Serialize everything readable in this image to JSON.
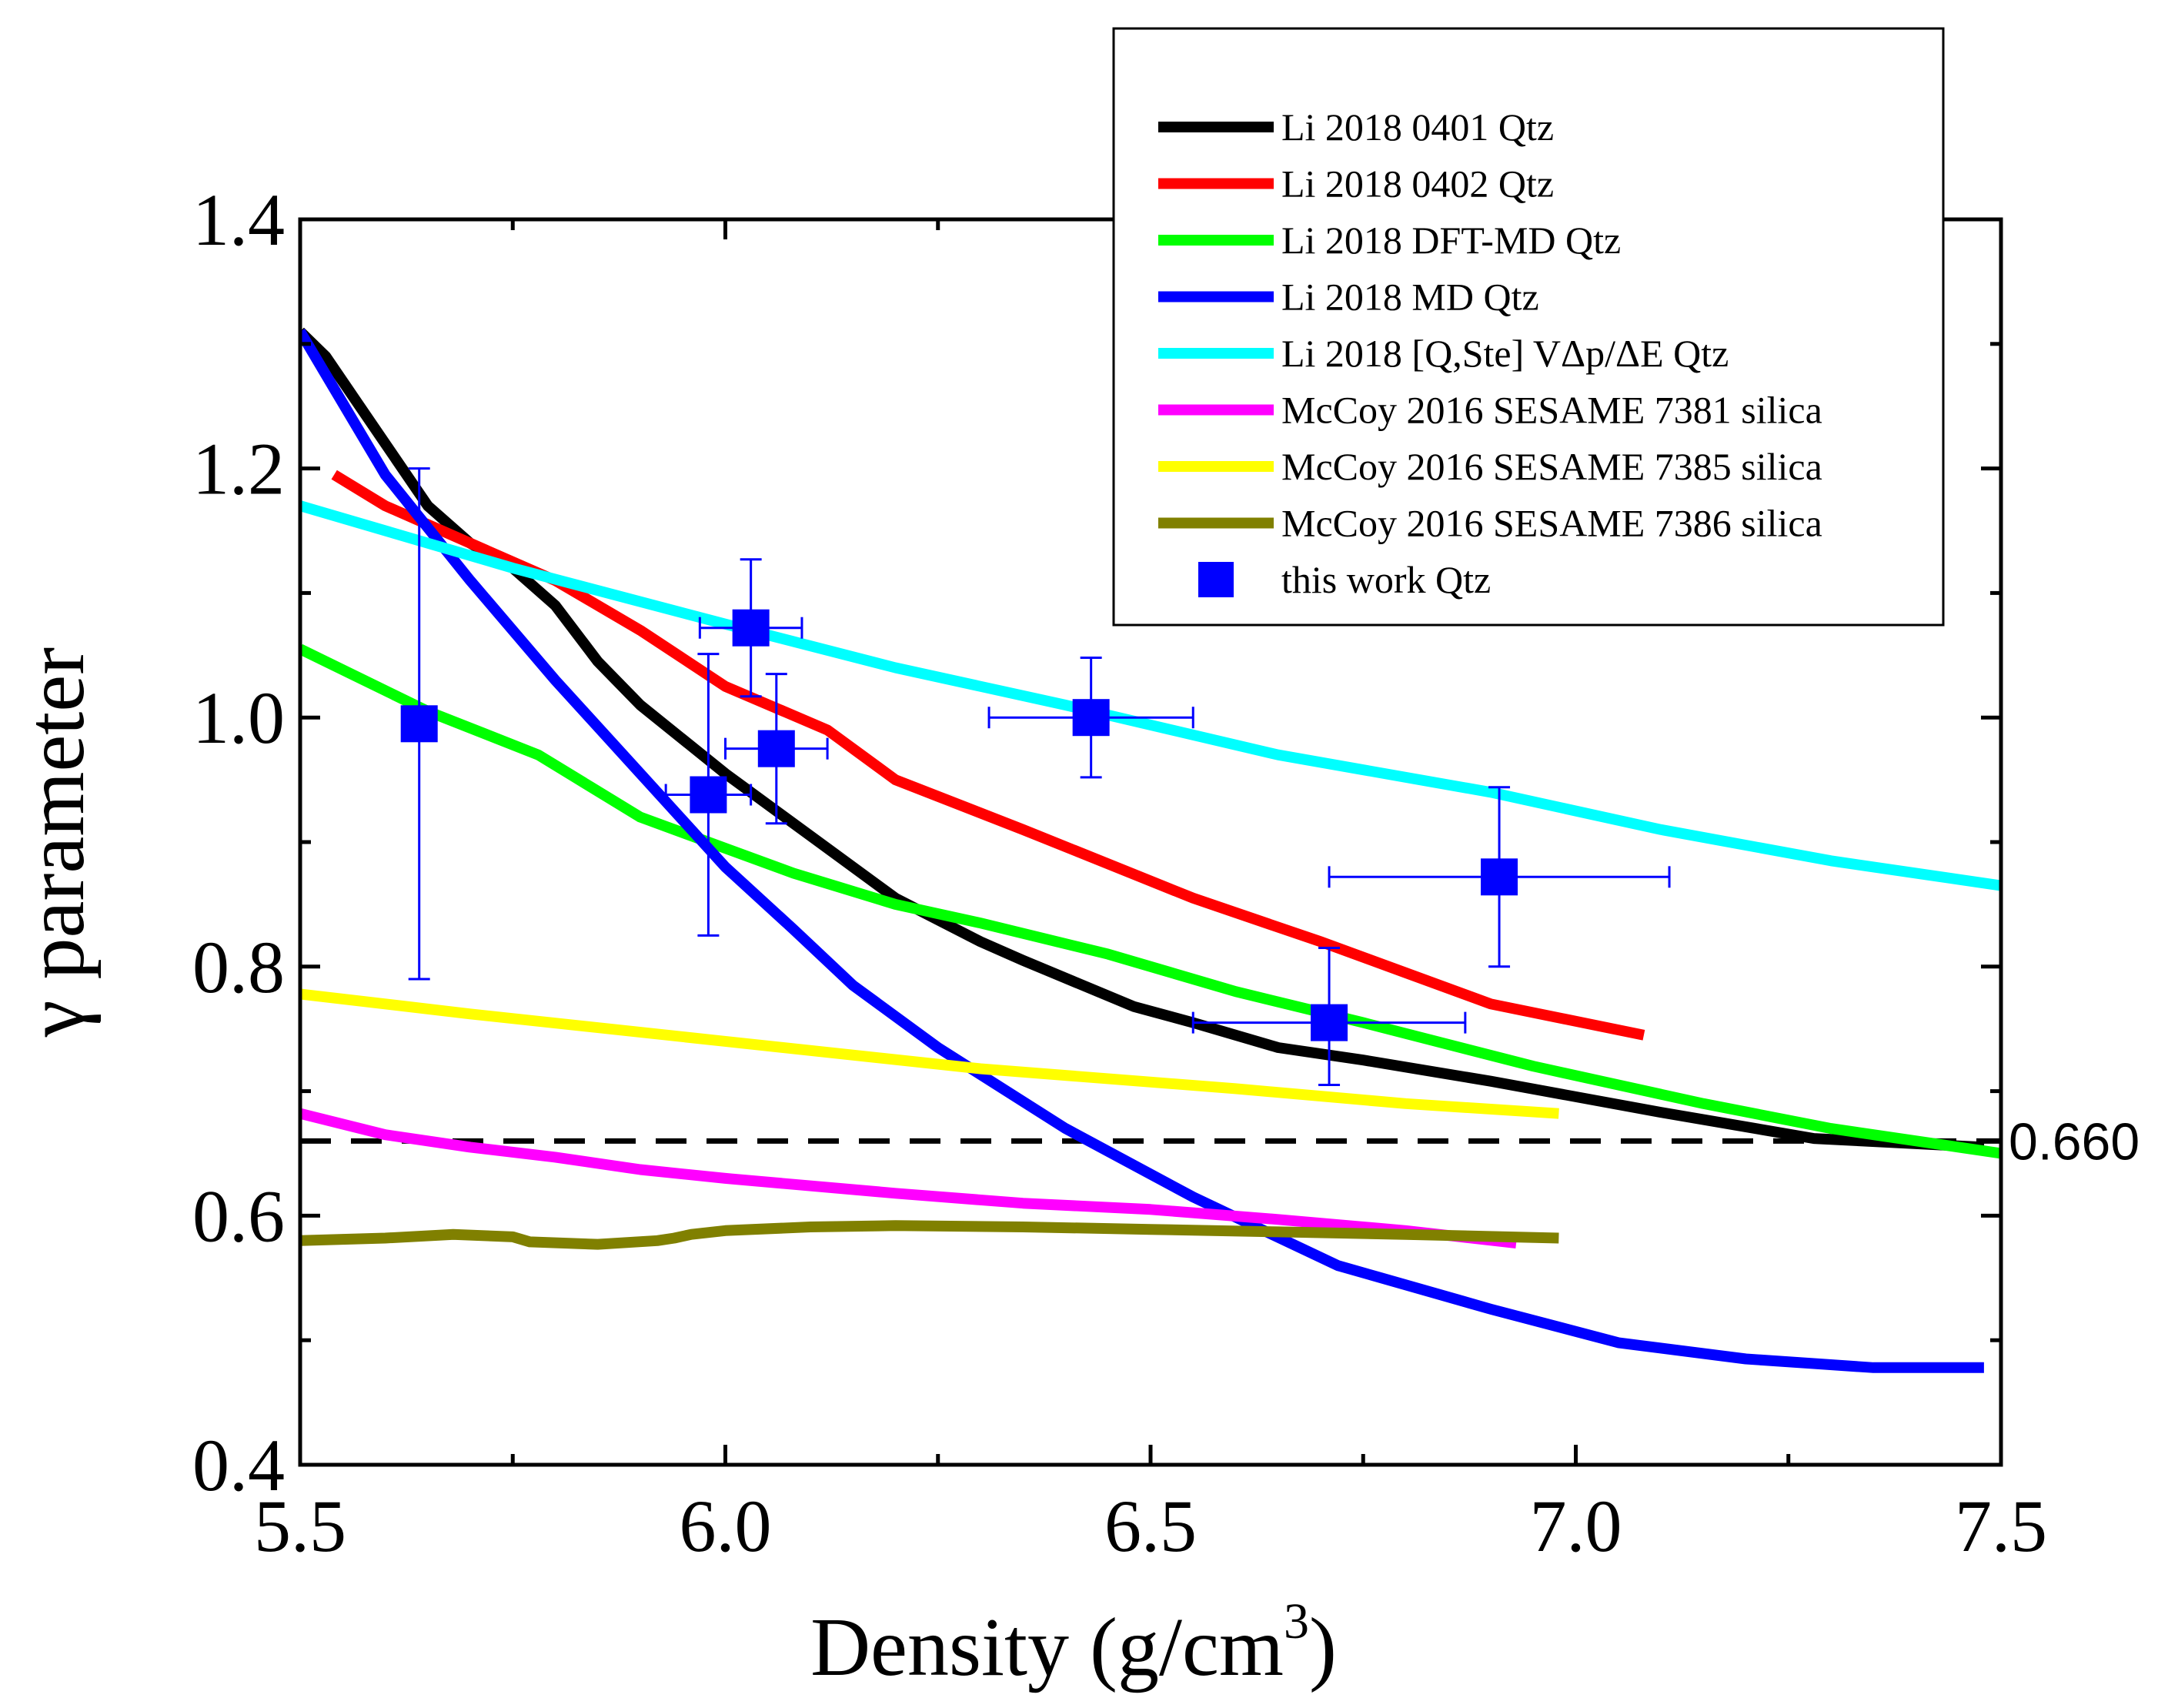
{
  "chart_data": {
    "type": "line",
    "title": "",
    "xlabel": "Density (g/cm",
    "xlabel_sup": "3",
    "xlabel_close": ")",
    "ylabel": "γ parameter",
    "xlim": [
      5.5,
      7.5
    ],
    "ylim": [
      0.4,
      1.4
    ],
    "xticks": [
      5.5,
      6.0,
      6.5,
      7.0,
      7.5
    ],
    "xtick_labels": [
      "5.5",
      "6.0",
      "6.5",
      "7.0",
      "7.5"
    ],
    "yticks": [
      0.4,
      0.6,
      0.8,
      1.0,
      1.2,
      1.4
    ],
    "ytick_labels": [
      "0.4",
      "0.6",
      "0.8",
      "1.0",
      "1.2",
      "1.4"
    ],
    "legend_position": "top-right",
    "reference_line": {
      "y": 0.66,
      "label": "0.660",
      "color": "#000000",
      "style": "dashed"
    },
    "series": [
      {
        "name": "Li 2018 0401 Qtz",
        "color": "#000000",
        "x": [
          5.5,
          5.53,
          5.56,
          5.6,
          5.65,
          5.7,
          5.75,
          5.8,
          5.85,
          5.9,
          6.0,
          6.1,
          6.2,
          6.3,
          6.35,
          6.48,
          6.55,
          6.65,
          6.75,
          6.9,
          7.1,
          7.28,
          7.48
        ],
        "y": [
          1.31,
          1.29,
          1.26,
          1.22,
          1.17,
          1.14,
          1.12,
          1.09,
          1.045,
          1.01,
          0.955,
          0.905,
          0.855,
          0.82,
          0.805,
          0.768,
          0.755,
          0.735,
          0.725,
          0.708,
          0.683,
          0.662,
          0.655
        ]
      },
      {
        "name": "Li 2018 0402 Qtz",
        "color": "#ff0000",
        "x": [
          5.54,
          5.6,
          5.7,
          5.8,
          5.9,
          6.0,
          6.12,
          6.2,
          6.35,
          6.55,
          6.7,
          6.9,
          7.08
        ],
        "y": [
          1.195,
          1.17,
          1.14,
          1.11,
          1.07,
          1.025,
          0.99,
          0.95,
          0.91,
          0.855,
          0.82,
          0.77,
          0.745
        ]
      },
      {
        "name": "Li 2018 DFT-MD Qtz",
        "color": "#00ff00",
        "x": [
          5.5,
          5.65,
          5.78,
          5.9,
          6.0,
          6.08,
          6.2,
          6.3,
          6.45,
          6.6,
          6.75,
          6.95,
          7.15,
          7.3,
          7.5
        ],
        "y": [
          1.055,
          1.005,
          0.97,
          0.92,
          0.895,
          0.875,
          0.85,
          0.835,
          0.81,
          0.78,
          0.755,
          0.72,
          0.69,
          0.67,
          0.65
        ]
      },
      {
        "name": "Li 2018 MD Qtz",
        "color": "#0000ff",
        "x": [
          5.5,
          5.6,
          5.7,
          5.8,
          5.9,
          6.0,
          6.08,
          6.15,
          6.25,
          6.4,
          6.55,
          6.72,
          6.9,
          7.05,
          7.2,
          7.35,
          7.48
        ],
        "y": [
          1.31,
          1.195,
          1.11,
          1.03,
          0.955,
          0.88,
          0.83,
          0.785,
          0.735,
          0.67,
          0.615,
          0.56,
          0.525,
          0.498,
          0.485,
          0.478,
          0.478
        ]
      },
      {
        "name": "Li 2018 [Q,Ste] VΔp/ΔE Qtz",
        "color": "#00ffff",
        "x": [
          5.5,
          5.75,
          6.0,
          6.2,
          6.4,
          6.65,
          6.9,
          7.1,
          7.3,
          7.5
        ],
        "y": [
          1.17,
          1.12,
          1.075,
          1.04,
          1.01,
          0.97,
          0.94,
          0.91,
          0.885,
          0.865
        ]
      },
      {
        "name": "McCoy 2016 SESAME 7381 silica",
        "color": "#ff00ff",
        "x": [
          5.5,
          5.6,
          5.7,
          5.8,
          5.9,
          6.0,
          6.2,
          6.35,
          6.5,
          6.65,
          6.8,
          6.93
        ],
        "y": [
          0.682,
          0.665,
          0.655,
          0.647,
          0.637,
          0.63,
          0.618,
          0.61,
          0.605,
          0.597,
          0.588,
          0.578
        ]
      },
      {
        "name": "McCoy 2016 SESAME 7385 silica",
        "color": "#ffff00",
        "x": [
          5.5,
          5.7,
          6.0,
          6.3,
          6.6,
          6.8,
          6.98
        ],
        "y": [
          0.778,
          0.762,
          0.74,
          0.718,
          0.702,
          0.69,
          0.682
        ]
      },
      {
        "name": "McCoy 2016 SESAME 7386 silica",
        "color": "#808000",
        "x": [
          5.5,
          5.6,
          5.68,
          5.75,
          5.77,
          5.85,
          5.92,
          5.94,
          5.96,
          6.0,
          6.1,
          6.2,
          6.35,
          6.5,
          6.65,
          6.8,
          6.98
        ],
        "y": [
          0.58,
          0.582,
          0.585,
          0.583,
          0.579,
          0.577,
          0.58,
          0.582,
          0.585,
          0.588,
          0.591,
          0.592,
          0.591,
          0.589,
          0.587,
          0.585,
          0.582
        ]
      }
    ],
    "points": {
      "name": "this work Qtz",
      "color": "#0000ff",
      "data": [
        {
          "x": 5.64,
          "y": 0.995,
          "xerr": 0.015,
          "yerr_low": 0.205,
          "yerr_high": 0.205
        },
        {
          "x": 5.98,
          "y": 0.938,
          "xerr": 0.05,
          "yerr_low": 0.113,
          "yerr_high": 0.113
        },
        {
          "x": 6.03,
          "y": 1.072,
          "xerr": 0.06,
          "yerr_low": 0.055,
          "yerr_high": 0.055
        },
        {
          "x": 6.06,
          "y": 0.975,
          "xerr": 0.06,
          "yerr_low": 0.06,
          "yerr_high": 0.06
        },
        {
          "x": 6.43,
          "y": 1.0,
          "xerr": 0.12,
          "yerr_low": 0.048,
          "yerr_high": 0.048
        },
        {
          "x": 6.71,
          "y": 0.755,
          "xerr": 0.16,
          "yerr_low": 0.05,
          "yerr_high": 0.06
        },
        {
          "x": 6.91,
          "y": 0.872,
          "xerr": 0.2,
          "yerr_low": 0.072,
          "yerr_high": 0.072
        }
      ]
    }
  }
}
